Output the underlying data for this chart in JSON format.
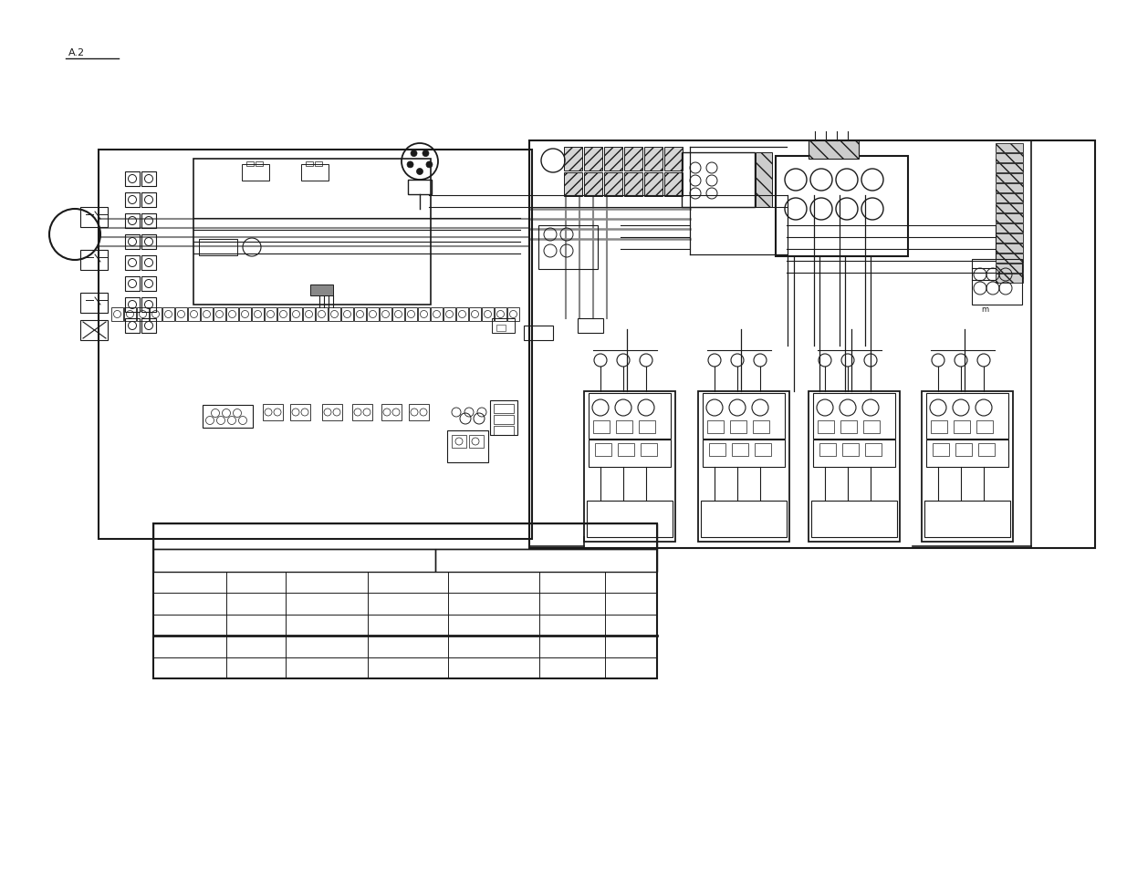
{
  "bg_color": "#ffffff",
  "lc": "#1a1a1a",
  "gc": "#888888",
  "lgc": "#aaaaaa",
  "fig_width": 12.35,
  "fig_height": 9.54,
  "dpi": 100
}
